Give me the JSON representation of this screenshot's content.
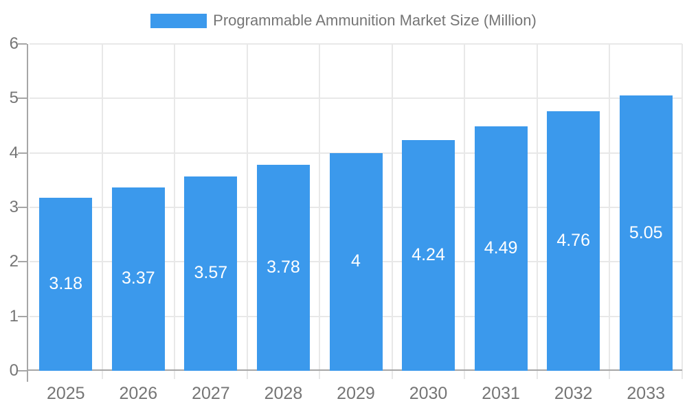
{
  "chart_data": {
    "type": "bar",
    "title": "Programmable Ammunition Market Size (Million)",
    "legend": [
      "Programmable Ammunition Market Size (Million)"
    ],
    "legend_position": "top-center",
    "categories": [
      "2025",
      "2026",
      "2027",
      "2028",
      "2029",
      "2030",
      "2031",
      "2032",
      "2033"
    ],
    "values": [
      3.18,
      3.37,
      3.57,
      3.78,
      4,
      4.24,
      4.49,
      4.76,
      5.05
    ],
    "bar_labels": [
      "3.18",
      "3.37",
      "3.57",
      "3.78",
      "4",
      "4.24",
      "4.49",
      "4.76",
      "5.05"
    ],
    "xlabel": "",
    "ylabel": "",
    "ylim": [
      0,
      6
    ],
    "y_ticks": [
      0,
      1,
      2,
      3,
      4,
      5,
      6
    ],
    "grid": "on",
    "colors": {
      "bar": "#3B99EC",
      "bar_label": "#FFFFFF",
      "axis_text": "#757575",
      "axis_line": "#A6A6A6",
      "gridline": "#E8E8E8",
      "background": "#FFFFFF"
    }
  }
}
